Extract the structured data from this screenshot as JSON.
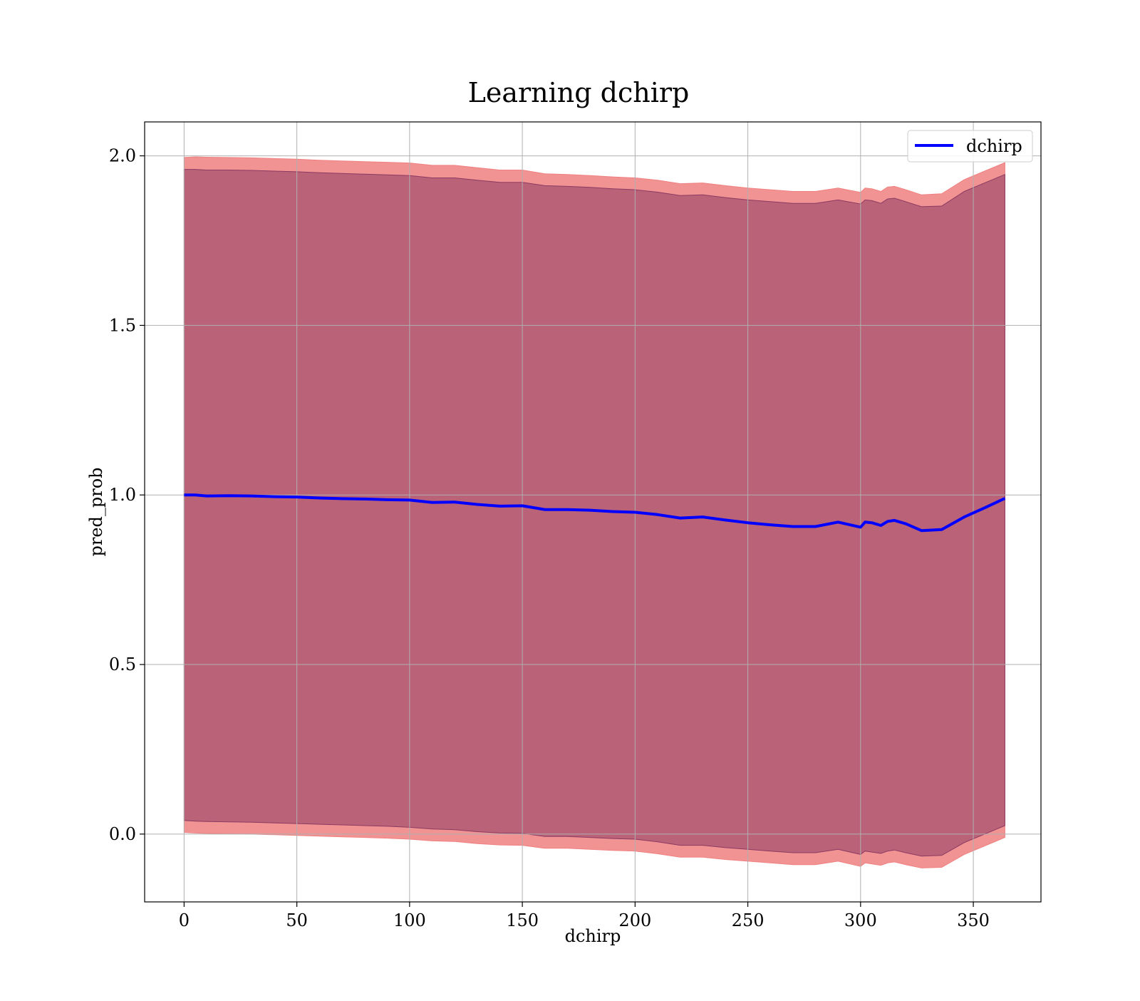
{
  "chart_data": {
    "type": "line",
    "title": "Learning dchirp",
    "xlabel": "dchirp",
    "ylabel": "pred_prob",
    "xlim": [
      -17.5,
      380
    ],
    "ylim": [
      -0.2,
      2.1
    ],
    "xticks": [
      0,
      50,
      100,
      150,
      200,
      250,
      300,
      350
    ],
    "yticks": [
      0.0,
      0.5,
      1.0,
      1.5,
      2.0
    ],
    "xtick_labels": [
      "0",
      "50",
      "100",
      "150",
      "200",
      "250",
      "300",
      "350"
    ],
    "ytick_labels": [
      "0.0",
      "0.5",
      "1.0",
      "1.5",
      "2.0"
    ],
    "grid": true,
    "legend": {
      "placement": "top-right",
      "entries": [
        "dchirp"
      ]
    },
    "series": [
      {
        "name": "dchirp",
        "color": "#0000ff",
        "x": [
          0,
          5,
          10,
          20,
          30,
          40,
          50,
          60,
          70,
          80,
          90,
          100,
          110,
          120,
          130,
          140,
          150,
          160,
          170,
          180,
          190,
          200,
          210,
          220,
          230,
          240,
          250,
          260,
          270,
          280,
          290,
          300,
          302,
          305,
          309,
          312,
          315,
          320,
          327,
          336,
          346,
          355,
          364
        ],
        "y": [
          1.0,
          1.0,
          0.997,
          0.998,
          0.997,
          0.995,
          0.994,
          0.991,
          0.989,
          0.988,
          0.986,
          0.985,
          0.978,
          0.979,
          0.972,
          0.967,
          0.968,
          0.957,
          0.957,
          0.955,
          0.951,
          0.949,
          0.942,
          0.932,
          0.935,
          0.926,
          0.918,
          0.912,
          0.907,
          0.907,
          0.92,
          0.905,
          0.92,
          0.918,
          0.91,
          0.922,
          0.925,
          0.915,
          0.895,
          0.898,
          0.935,
          0.962,
          0.99
        ]
      }
    ],
    "bands": [
      {
        "color": "#f08080",
        "x": [
          0,
          5,
          10,
          20,
          30,
          40,
          50,
          60,
          70,
          80,
          90,
          100,
          110,
          120,
          130,
          140,
          150,
          160,
          170,
          180,
          190,
          200,
          210,
          220,
          230,
          240,
          250,
          260,
          270,
          280,
          290,
          300,
          302,
          305,
          309,
          312,
          315,
          320,
          327,
          336,
          346,
          355,
          364
        ],
        "upper": [
          1.995,
          1.997,
          1.996,
          1.995,
          1.994,
          1.992,
          1.99,
          1.987,
          1.985,
          1.983,
          1.981,
          1.979,
          1.972,
          1.972,
          1.965,
          1.958,
          1.958,
          1.947,
          1.945,
          1.942,
          1.938,
          1.935,
          1.928,
          1.918,
          1.92,
          1.912,
          1.905,
          1.9,
          1.895,
          1.895,
          1.905,
          1.892,
          1.905,
          1.903,
          1.895,
          1.908,
          1.91,
          1.9,
          1.885,
          1.888,
          1.93,
          1.955,
          1.98
        ],
        "lower": [
          0.005,
          0.003,
          0.002,
          0.001,
          0.0,
          -0.002,
          -0.004,
          -0.006,
          -0.008,
          -0.01,
          -0.012,
          -0.015,
          -0.02,
          -0.022,
          -0.028,
          -0.032,
          -0.033,
          -0.042,
          -0.042,
          -0.045,
          -0.048,
          -0.05,
          -0.058,
          -0.068,
          -0.068,
          -0.075,
          -0.08,
          -0.085,
          -0.09,
          -0.09,
          -0.08,
          -0.095,
          -0.085,
          -0.088,
          -0.092,
          -0.085,
          -0.082,
          -0.09,
          -0.1,
          -0.098,
          -0.06,
          -0.035,
          -0.01
        ]
      },
      {
        "color": "#8b3a62",
        "x": [
          0,
          5,
          10,
          20,
          30,
          40,
          50,
          60,
          70,
          80,
          90,
          100,
          110,
          120,
          130,
          140,
          150,
          160,
          170,
          180,
          190,
          200,
          210,
          220,
          230,
          240,
          250,
          260,
          270,
          280,
          290,
          300,
          302,
          305,
          309,
          312,
          315,
          320,
          327,
          336,
          346,
          355,
          364
        ],
        "upper": [
          1.96,
          1.96,
          1.958,
          1.958,
          1.957,
          1.955,
          1.953,
          1.95,
          1.948,
          1.946,
          1.944,
          1.942,
          1.935,
          1.935,
          1.928,
          1.922,
          1.922,
          1.912,
          1.91,
          1.907,
          1.903,
          1.9,
          1.893,
          1.883,
          1.885,
          1.877,
          1.87,
          1.865,
          1.86,
          1.86,
          1.87,
          1.858,
          1.87,
          1.868,
          1.86,
          1.873,
          1.875,
          1.865,
          1.85,
          1.852,
          1.895,
          1.92,
          1.945
        ],
        "lower": [
          0.04,
          0.038,
          0.037,
          0.036,
          0.035,
          0.033,
          0.031,
          0.029,
          0.027,
          0.025,
          0.023,
          0.02,
          0.015,
          0.013,
          0.007,
          0.003,
          0.002,
          -0.007,
          -0.007,
          -0.01,
          -0.013,
          -0.015,
          -0.023,
          -0.033,
          -0.033,
          -0.04,
          -0.045,
          -0.05,
          -0.055,
          -0.055,
          -0.045,
          -0.06,
          -0.05,
          -0.053,
          -0.057,
          -0.05,
          -0.047,
          -0.055,
          -0.065,
          -0.063,
          -0.025,
          0.0,
          0.025
        ]
      }
    ]
  }
}
